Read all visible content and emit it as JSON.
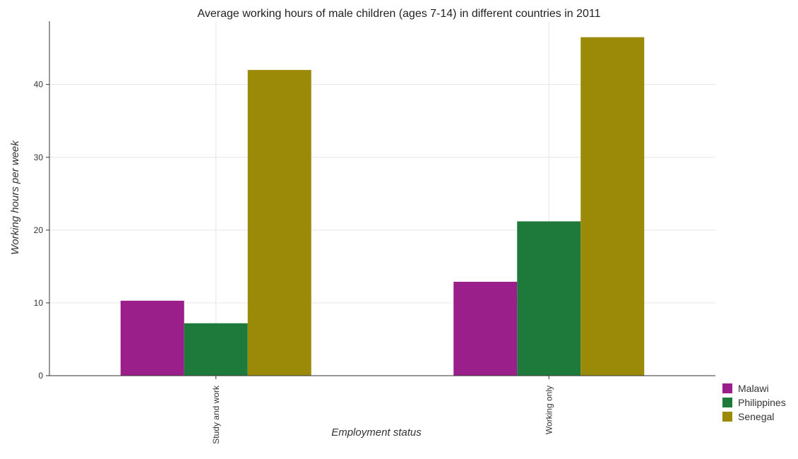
{
  "chart_data": {
    "type": "bar",
    "title": "Average working hours of male children (ages 7-14) in different countries in 2011",
    "xlabel": "Employment status",
    "ylabel": "Working hours per week",
    "categories": [
      "Study and work",
      "Working only"
    ],
    "ylim": [
      0,
      48.7
    ],
    "yticks": [
      0,
      10,
      20,
      30,
      40
    ],
    "grid": true,
    "legend_position": "bottom-right",
    "series": [
      {
        "name": "Malawi",
        "color": "#9b1f8a",
        "values": [
          10.3,
          12.9
        ]
      },
      {
        "name": "Philippines",
        "color": "#1e7a3a",
        "values": [
          7.2,
          21.2
        ]
      },
      {
        "name": "Senegal",
        "color": "#9a8a08",
        "values": [
          42.0,
          46.5
        ]
      }
    ]
  }
}
